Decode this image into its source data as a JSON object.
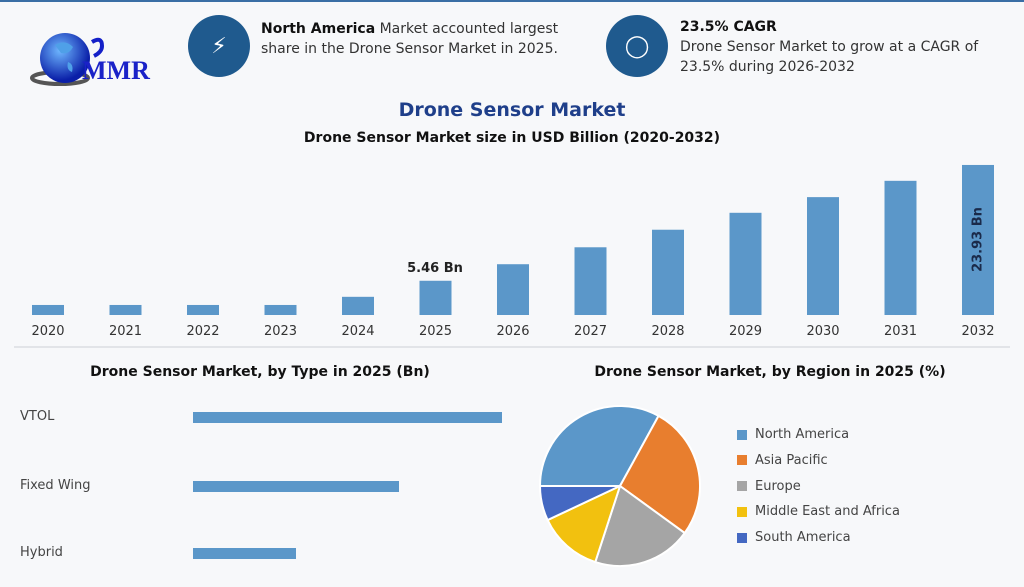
{
  "logo": {
    "text": "MMR"
  },
  "cards": [
    {
      "icon": "lightning-icon",
      "bold": "North America",
      "text": " Market accounted largest share in the Drone Sensor Market in 2025."
    },
    {
      "icon": "flame-icon",
      "title": "23.5% CAGR",
      "text": "Drone Sensor Market to grow at a CAGR of 23.5% during 2026-2032"
    }
  ],
  "colors": {
    "accent": "#1f5a8e",
    "bar": "#5b97c9",
    "title": "#1f3f8a"
  },
  "chart_data": [
    {
      "type": "bar",
      "title": "Drone Sensor Market",
      "subtitle": "Drone Sensor Market size in USD Billion (2020-2032)",
      "categories": [
        "2020",
        "2021",
        "2022",
        "2023",
        "2024",
        "2025",
        "2026",
        "2027",
        "2028",
        "2029",
        "2030",
        "2031",
        "2032"
      ],
      "values": [
        1.6,
        1.6,
        1.6,
        1.6,
        2.9,
        5.46,
        8.1,
        10.8,
        13.6,
        16.3,
        18.8,
        21.4,
        23.93
      ],
      "data_labels": {
        "2025": "5.46 Bn",
        "2032": "23.93 Bn"
      },
      "ylim": [
        0,
        24
      ],
      "grid": false
    },
    {
      "type": "bar",
      "orientation": "horizontal",
      "title": "Drone Sensor Market, by Type in 2025 (Bn)",
      "categories": [
        "VTOL",
        "Fixed Wing",
        "Hybrid"
      ],
      "values": [
        2.73,
        1.82,
        0.91
      ]
    },
    {
      "type": "pie",
      "title": "Drone Sensor Market, by Region in 2025 (%)",
      "categories": [
        "North America",
        "Asia Pacific",
        "Europe",
        "Middle East and Africa",
        "South America"
      ],
      "values": [
        33,
        27,
        20,
        13,
        7
      ],
      "colors": [
        "#5b97c9",
        "#e87e2e",
        "#a5a5a5",
        "#f2c10f",
        "#4468c2"
      ],
      "legend": "right"
    }
  ]
}
